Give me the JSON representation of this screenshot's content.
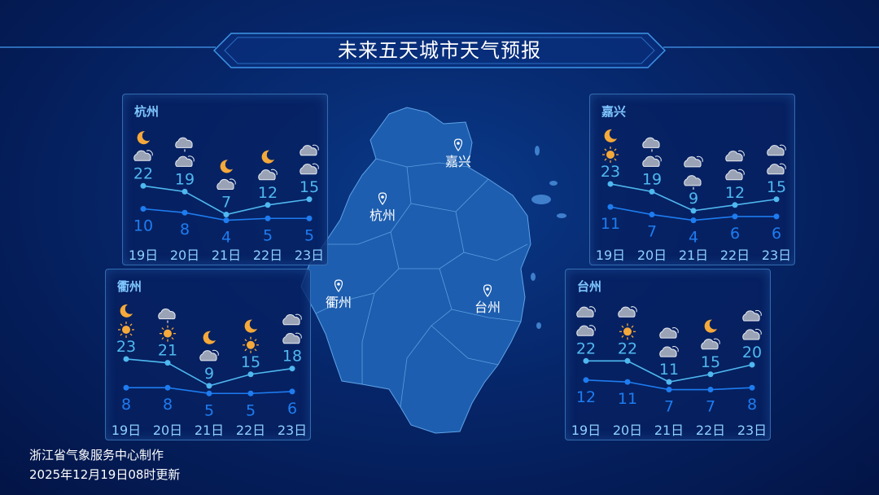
{
  "title": "未来五天城市天气预报",
  "footer": {
    "line1": "浙江省气象服务中心制作",
    "line2": "2025年12月19日08时更新"
  },
  "colors": {
    "high": "#4fb8f0",
    "low": "#1e7cf0",
    "moon": "#f5a93a",
    "sun": "#f5a93a",
    "cloud": "#9aa3b6"
  },
  "map_labels": [
    "嘉兴",
    "杭州",
    "衢州",
    "台州"
  ],
  "cities": [
    {
      "name": "杭州",
      "dates": [
        "19日",
        "20日",
        "21日",
        "22日",
        "23日"
      ],
      "high": [
        22,
        19,
        7,
        12,
        15
      ],
      "low": [
        10,
        8,
        4,
        5,
        5
      ],
      "icons": [
        [
          "moon-icon",
          "cloudy-icon"
        ],
        [
          "rain-icon",
          "cloudy-icon"
        ],
        [
          "moon-icon",
          "cloudy-icon"
        ],
        [
          "moon-icon",
          "cloudy-icon"
        ],
        [
          "cloudy-icon",
          "cloudy-icon"
        ]
      ]
    },
    {
      "name": "嘉兴",
      "dates": [
        "19日",
        "20日",
        "21日",
        "22日",
        "23日"
      ],
      "high": [
        23,
        19,
        9,
        12,
        15
      ],
      "low": [
        11,
        7,
        4,
        6,
        6
      ],
      "icons": [
        [
          "moon-icon",
          "sun-icon"
        ],
        [
          "rain-icon",
          "cloudy-icon"
        ],
        [
          "cloudy-icon",
          "rain-icon"
        ],
        [
          "cloudy-icon",
          "cloudy-icon"
        ],
        [
          "cloudy-icon",
          "cloudy-icon"
        ]
      ]
    },
    {
      "name": "衢州",
      "dates": [
        "19日",
        "20日",
        "21日",
        "22日",
        "23日"
      ],
      "high": [
        23,
        21,
        9,
        15,
        18
      ],
      "low": [
        8,
        8,
        5,
        5,
        6
      ],
      "icons": [
        [
          "moon-icon",
          "sun-icon"
        ],
        [
          "rain-icon",
          "sun-icon"
        ],
        [
          "moon-icon",
          "cloudy-icon"
        ],
        [
          "moon-icon",
          "sun-icon"
        ],
        [
          "cloudy-icon",
          "cloudy-icon"
        ]
      ]
    },
    {
      "name": "台州",
      "dates": [
        "19日",
        "20日",
        "21日",
        "22日",
        "23日"
      ],
      "high": [
        22,
        22,
        11,
        15,
        20
      ],
      "low": [
        12,
        11,
        7,
        7,
        8
      ],
      "icons": [
        [
          "cloudy-icon",
          "cloudy-icon"
        ],
        [
          "cloudy-icon",
          "sun-icon"
        ],
        [
          "cloudy-icon",
          "cloudy-icon"
        ],
        [
          "moon-icon",
          "cloudy-icon"
        ],
        [
          "cloudy-icon",
          "cloudy-icon"
        ]
      ]
    }
  ]
}
